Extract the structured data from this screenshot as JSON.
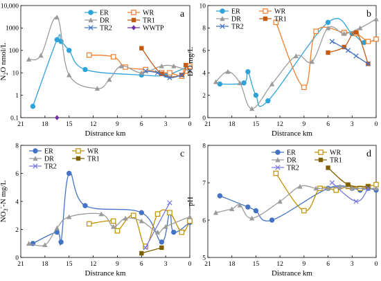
{
  "chart_data": [
    {
      "type": "line",
      "panel_letter": "a",
      "xlabel": "Distrance km",
      "ylabel": "N",
      "ylabel_sub": "2",
      "ylabel_rest": "O nmol/L",
      "xlim": [
        21,
        0
      ],
      "xticks": [
        21,
        18,
        15,
        12,
        9,
        6,
        3,
        0
      ],
      "ylog": true,
      "ylim": [
        0.1,
        10000
      ],
      "yticks": [
        0.1,
        1,
        10,
        100,
        1000,
        10000
      ],
      "ytick_labels": [
        "0.1",
        "1",
        "10",
        "100",
        "1000",
        "10,000"
      ],
      "legend_position": "top-center",
      "series": [
        {
          "name": "ER",
          "color": "#2ea3d8",
          "marker": "circle",
          "x": [
            19.5,
            16.5,
            16,
            15,
            13,
            6,
            3,
            0
          ],
          "y": [
            0.32,
            300,
            250,
            100,
            14,
            8,
            8,
            20
          ]
        },
        {
          "name": "WR",
          "color": "#f07d2e",
          "marker": "square-open",
          "x": [
            12.5,
            9.5,
            8,
            5.5,
            3.5,
            2.5,
            1,
            0.5,
            0
          ],
          "y": [
            62,
            52,
            18,
            14,
            10,
            10,
            7,
            12,
            20
          ]
        },
        {
          "name": "DR",
          "color": "#9b9b9b",
          "marker": "triangle",
          "x": [
            20,
            18.5,
            16.5,
            15,
            11.5,
            10,
            8.5,
            6,
            3.5,
            2,
            0
          ],
          "y": [
            40,
            60,
            3000,
            8,
            2,
            5,
            20,
            10,
            20,
            20,
            12
          ]
        },
        {
          "name": "TR1",
          "color": "#c55a11",
          "marker": "square",
          "x": [
            6,
            3.5,
            1,
            0.5
          ],
          "y": [
            125,
            9,
            8,
            22
          ]
        },
        {
          "name": "TR2",
          "color": "#4472c4",
          "marker": "x",
          "x": [
            5.5,
            4,
            2.5,
            1
          ],
          "y": [
            12,
            10,
            6,
            8
          ]
        },
        {
          "name": "WWTP",
          "color": "#7030a0",
          "marker": "diamond",
          "x": [
            16.5
          ],
          "y": [
            0.1
          ]
        }
      ]
    },
    {
      "type": "line",
      "panel_letter": "b",
      "xlabel": "Distrance km",
      "ylabel": "DO mg/L",
      "xlim": [
        21,
        0
      ],
      "xticks": [
        21,
        18,
        15,
        12,
        9,
        6,
        3,
        0
      ],
      "ylim": [
        0,
        10
      ],
      "yticks": [
        0,
        2,
        4,
        6,
        8,
        10
      ],
      "legend_position": "top-left",
      "series": [
        {
          "name": "ER",
          "color": "#2ea3d8",
          "marker": "circle",
          "x": [
            19.5,
            16.5,
            16,
            15,
            13.5,
            6,
            3,
            1.5,
            0
          ],
          "y": [
            3,
            3.1,
            4.1,
            2,
            1.5,
            8.5,
            7.5,
            6.7,
            7
          ]
        },
        {
          "name": "WR",
          "color": "#f07d2e",
          "marker": "square-open",
          "x": [
            12.5,
            9,
            7.5,
            4,
            2.5,
            1,
            0
          ],
          "y": [
            8.5,
            2.7,
            7.7,
            7.6,
            7.5,
            6.8,
            7
          ]
        },
        {
          "name": "DR",
          "color": "#9b9b9b",
          "marker": "triangle",
          "x": [
            20,
            18.5,
            17,
            15.5,
            13,
            10,
            8,
            6,
            4,
            2,
            0
          ],
          "y": [
            3.2,
            4.1,
            3.1,
            0.8,
            3,
            5.5,
            5,
            8,
            7.5,
            8,
            8.8
          ]
        },
        {
          "name": "TR1",
          "color": "#c55a11",
          "marker": "square",
          "x": [
            6,
            4,
            2.5,
            1
          ],
          "y": [
            5.8,
            6.3,
            7.6,
            4.8
          ]
        },
        {
          "name": "TR2",
          "color": "#4472c4",
          "marker": "x",
          "x": [
            5.5,
            3.5,
            2.5,
            1
          ],
          "y": [
            6.8,
            6,
            5.5,
            4.8
          ]
        }
      ]
    },
    {
      "type": "line",
      "panel_letter": "c",
      "xlabel": "Distrance km",
      "ylabel": "NO",
      "ylabel_sub": "3",
      "ylabel_sup": "-",
      "ylabel_rest": "-N mg/L",
      "xlim": [
        21,
        0
      ],
      "xticks": [
        21,
        18,
        15,
        12,
        9,
        6,
        3,
        0
      ],
      "ylim": [
        0,
        8
      ],
      "yticks": [
        0,
        2,
        4,
        6,
        8
      ],
      "legend_position": "top-left",
      "series": [
        {
          "name": "ER",
          "color": "#4472c4",
          "marker": "circle",
          "x": [
            19.5,
            16.5,
            16,
            15,
            13,
            6,
            3.5,
            2.5,
            2,
            0
          ],
          "y": [
            1,
            1.8,
            1.1,
            6,
            3.7,
            3.2,
            1.1,
            3.2,
            1.8,
            2.5
          ]
        },
        {
          "name": "WR",
          "color": "#bf9000",
          "marker": "square-open",
          "x": [
            12.5,
            9.5,
            9,
            7,
            5.5,
            4,
            2.5,
            1,
            0
          ],
          "y": [
            2.4,
            2.6,
            1.9,
            3,
            0.8,
            3.1,
            3.2,
            1.8,
            2.6
          ]
        },
        {
          "name": "DR",
          "color": "#9b9b9b",
          "marker": "triangle",
          "x": [
            20,
            18,
            16.5,
            15,
            11,
            9.5,
            8,
            6,
            4,
            3,
            0
          ],
          "y": [
            1,
            0.9,
            2.1,
            2.9,
            3.1,
            2.2,
            2.8,
            2.6,
            1.8,
            2.2,
            2.9
          ]
        },
        {
          "name": "TR1",
          "color": "#7f6000",
          "marker": "square",
          "x": [
            6,
            3.5
          ],
          "y": [
            0.3,
            0.7
          ]
        },
        {
          "name": "TR2",
          "color": "#7a7ae0",
          "marker": "x",
          "x": [
            5.5,
            2.5
          ],
          "y": [
            0.7,
            3.9
          ]
        }
      ]
    },
    {
      "type": "line",
      "panel_letter": "d",
      "xlabel": "Distrance km",
      "ylabel": "pH",
      "xlim": [
        21,
        0
      ],
      "xticks": [
        21,
        18,
        15,
        12,
        9,
        6,
        3,
        0
      ],
      "ylim": [
        5,
        8
      ],
      "yticks": [
        5,
        6,
        7,
        8
      ],
      "legend_position": "top-center",
      "series": [
        {
          "name": "ER",
          "color": "#4472c4",
          "marker": "circle",
          "x": [
            19.5,
            16,
            15,
            13,
            6,
            3,
            2,
            1,
            0
          ],
          "y": [
            6.65,
            6.35,
            6.25,
            6,
            6.85,
            6.85,
            6.8,
            6.85,
            6.8
          ]
        },
        {
          "name": "WR",
          "color": "#bf9000",
          "marker": "square-open",
          "x": [
            12.5,
            9,
            7,
            5,
            3.5,
            2,
            1,
            0
          ],
          "y": [
            7.25,
            6.25,
            6.85,
            6.8,
            6.9,
            6.85,
            6.9,
            6.95
          ]
        },
        {
          "name": "DR",
          "color": "#9b9b9b",
          "marker": "triangle",
          "x": [
            20,
            18,
            17,
            15.5,
            12,
            9.5,
            7.5,
            6,
            4.5,
            3,
            0
          ],
          "y": [
            6.2,
            6.3,
            6.4,
            6.05,
            6.5,
            6.9,
            6.85,
            6.85,
            6.9,
            6.85,
            6.85
          ]
        },
        {
          "name": "TR1",
          "color": "#7f6000",
          "marker": "square",
          "x": [
            6,
            3.5,
            1
          ],
          "y": [
            7.4,
            6.95,
            6.9
          ]
        },
        {
          "name": "TR2",
          "color": "#7a7ae0",
          "marker": "x",
          "x": [
            5.5,
            2.5,
            1
          ],
          "y": [
            7,
            6.5,
            6.85
          ]
        }
      ]
    }
  ]
}
